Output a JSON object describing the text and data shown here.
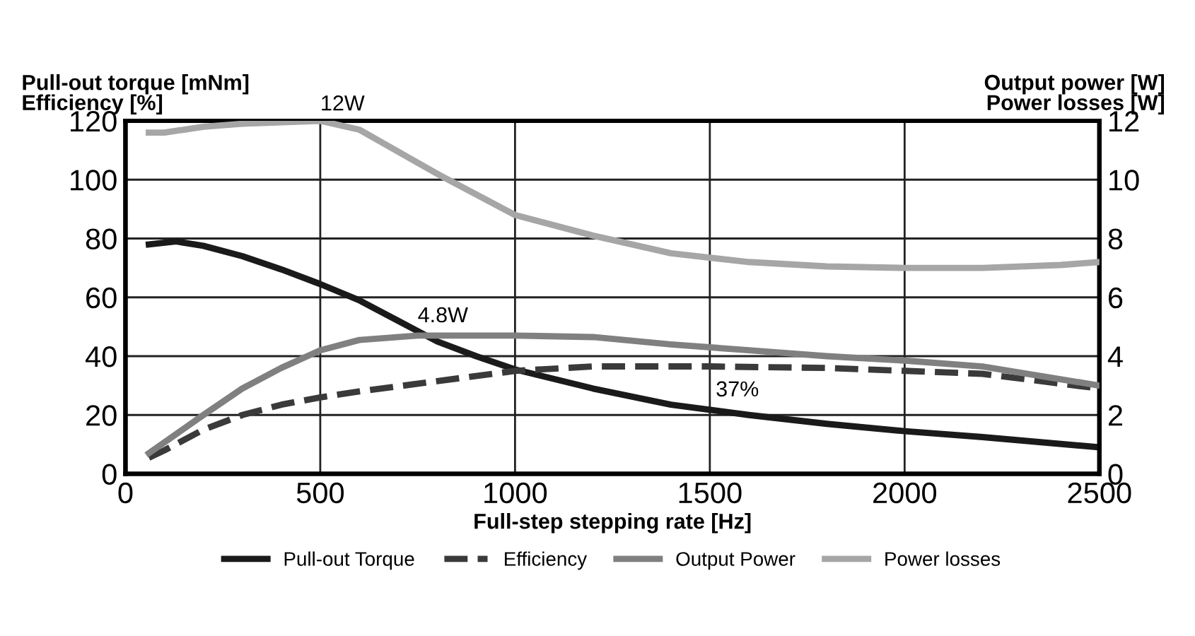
{
  "chart_data": {
    "type": "line",
    "xlabel": "Full-step stepping rate [Hz]",
    "ylabel": "Pull-out torque [mNm]\nEfficiency [%]",
    "y2label": "Output power [W]\nPower losses [W]",
    "xlim": [
      0,
      2500
    ],
    "xticks": [
      0,
      500,
      1000,
      1500,
      2000,
      2500
    ],
    "ylim": [
      0,
      120
    ],
    "yticks": [
      0,
      20,
      40,
      60,
      80,
      100,
      120
    ],
    "y2lim": [
      0,
      12
    ],
    "y2ticks": [
      0,
      2,
      4,
      6,
      8,
      10,
      12
    ],
    "grid": true,
    "legend": "bottom",
    "marker": "none",
    "annotations": [
      {
        "text": "12W",
        "x": 500,
        "y": 120
      },
      {
        "text": "4.8W",
        "x": 750,
        "y": 48
      },
      {
        "text": "37%",
        "x": 1500,
        "y": 37
      }
    ],
    "series": [
      {
        "name": "Pull-out Torque",
        "color": "#1a1a1a",
        "line_style": "solid",
        "x": [
          60,
          130,
          200,
          300,
          400,
          500,
          600,
          700,
          800,
          900,
          1000,
          1200,
          1400,
          1600,
          1800,
          2000,
          2200,
          2500
        ],
        "values": [
          78,
          79,
          77.5,
          74,
          69.5,
          64.5,
          59,
          52,
          45,
          40,
          35.5,
          29,
          23.5,
          20,
          17,
          14.5,
          12.5,
          9
        ]
      },
      {
        "name": "Efficiency",
        "color": "#3a3a3a",
        "line_style": "dashed",
        "x": [
          60,
          100,
          200,
          300,
          400,
          500,
          600,
          800,
          1000,
          1200,
          1500,
          1800,
          2000,
          2200,
          2500
        ],
        "values": [
          5.5,
          8,
          15,
          20,
          23.5,
          26,
          28,
          31.5,
          35,
          36.5,
          36.5,
          36,
          35,
          34,
          29
        ]
      },
      {
        "name": "Output Power",
        "color": "#808080",
        "line_style": "solid",
        "axis": "y2",
        "x": [
          60,
          200,
          300,
          400,
          500,
          600,
          750,
          1000,
          1200,
          1400,
          1600,
          1800,
          2000,
          2200,
          2500
        ],
        "values": [
          0.7,
          2,
          2.9,
          3.6,
          4.2,
          4.55,
          4.7,
          4.7,
          4.65,
          4.4,
          4.2,
          4,
          3.85,
          3.65,
          3
        ]
      },
      {
        "name": "Power losses",
        "color": "#a6a6a6",
        "line_style": "solid",
        "axis": "y2",
        "x": [
          60,
          100,
          200,
          300,
          500,
          600,
          800,
          1000,
          1200,
          1400,
          1600,
          1800,
          2000,
          2200,
          2400,
          2500
        ],
        "values": [
          11.6,
          11.6,
          11.8,
          11.9,
          12,
          11.7,
          10.2,
          8.8,
          8.1,
          7.5,
          7.2,
          7.05,
          7,
          7,
          7.1,
          7.2
        ]
      }
    ]
  }
}
